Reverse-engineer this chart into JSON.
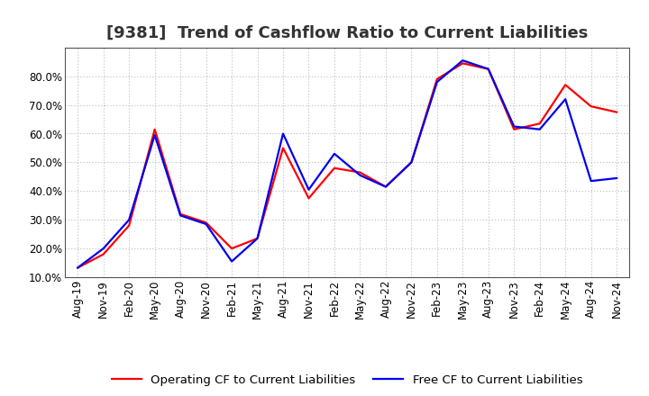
{
  "title": "[9381]  Trend of Cashflow Ratio to Current Liabilities",
  "x_labels": [
    "Aug-19",
    "Nov-19",
    "Feb-20",
    "May-20",
    "Aug-20",
    "Nov-20",
    "Feb-21",
    "May-21",
    "Aug-21",
    "Nov-21",
    "Feb-22",
    "May-22",
    "Aug-22",
    "Nov-22",
    "Feb-23",
    "May-23",
    "Aug-23",
    "Nov-23",
    "Feb-24",
    "May-24",
    "Aug-24",
    "Nov-24"
  ],
  "operating_cf": [
    0.133,
    0.18,
    0.28,
    0.615,
    0.32,
    0.29,
    0.2,
    0.235,
    0.55,
    0.375,
    0.48,
    0.465,
    0.415,
    0.5,
    0.79,
    0.845,
    0.825,
    0.615,
    0.635,
    0.77,
    0.695,
    0.675
  ],
  "free_cf": [
    0.133,
    0.2,
    0.3,
    0.595,
    0.315,
    0.285,
    0.155,
    0.235,
    0.6,
    0.405,
    0.53,
    0.455,
    0.415,
    0.5,
    0.78,
    0.855,
    0.825,
    0.625,
    0.615,
    0.72,
    0.435,
    0.445
  ],
  "ylim": [
    0.1,
    0.9
  ],
  "yticks": [
    0.1,
    0.2,
    0.3,
    0.4,
    0.5,
    0.6,
    0.7,
    0.8
  ],
  "operating_color": "#FF0000",
  "free_color": "#0000EE",
  "bg_color": "#FFFFFF",
  "plot_bg_color": "#FFFFFF",
  "grid_color": "#BBBBBB",
  "legend_operating": "Operating CF to Current Liabilities",
  "legend_free": "Free CF to Current Liabilities",
  "title_fontsize": 13,
  "axis_fontsize": 8.5,
  "legend_fontsize": 9.5,
  "line_width": 1.6
}
